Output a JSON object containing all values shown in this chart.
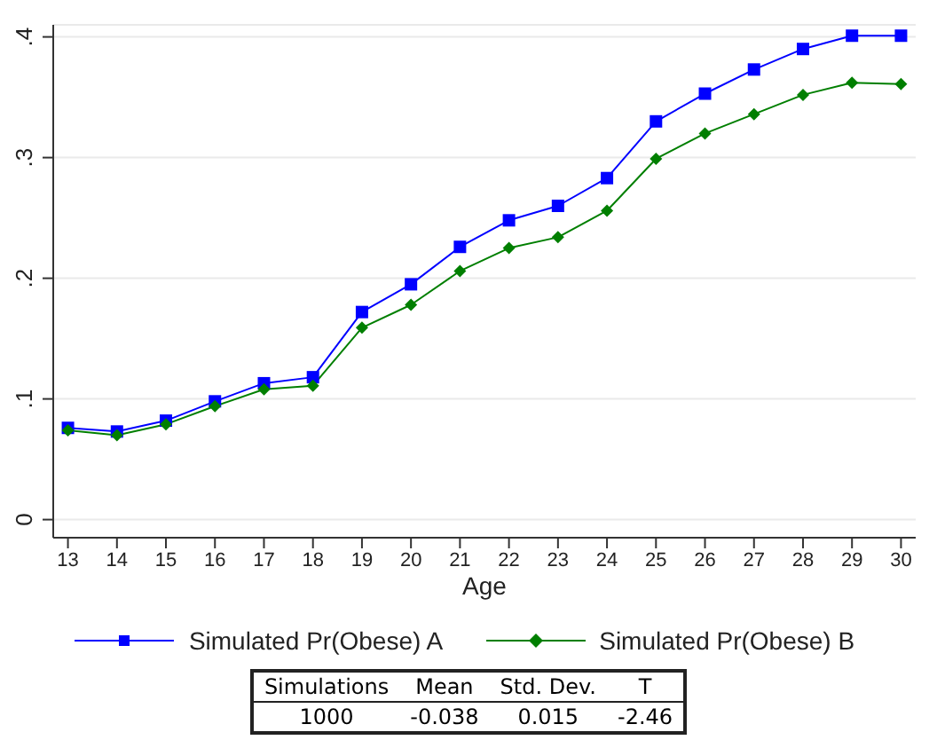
{
  "chart_data": {
    "type": "line",
    "xlabel": "Age",
    "x": [
      13,
      14,
      15,
      16,
      17,
      18,
      19,
      20,
      21,
      22,
      23,
      24,
      25,
      26,
      27,
      28,
      29,
      30
    ],
    "series": [
      {
        "name": "Simulated Pr(Obese) A",
        "color": "#0000ff",
        "marker": "square",
        "values": [
          0.076,
          0.073,
          0.082,
          0.098,
          0.113,
          0.118,
          0.172,
          0.195,
          0.226,
          0.248,
          0.26,
          0.283,
          0.33,
          0.353,
          0.373,
          0.39,
          0.401,
          0.401
        ]
      },
      {
        "name": "Simulated Pr(Obese) B",
        "color": "#007f00",
        "marker": "diamond",
        "values": [
          0.074,
          0.07,
          0.079,
          0.094,
          0.108,
          0.111,
          0.159,
          0.178,
          0.206,
          0.225,
          0.234,
          0.256,
          0.299,
          0.32,
          0.336,
          0.352,
          0.362,
          0.361
        ]
      }
    ],
    "xlim": [
      12.7,
      30.3
    ],
    "xticks": [
      13,
      14,
      15,
      16,
      17,
      18,
      19,
      20,
      21,
      22,
      23,
      24,
      25,
      26,
      27,
      28,
      29,
      30
    ],
    "ylim": [
      -0.015,
      0.41
    ],
    "yticks": [
      {
        "value": 0,
        "label": "0"
      },
      {
        "value": 0.1,
        "label": ".1"
      },
      {
        "value": 0.2,
        "label": ".2"
      },
      {
        "value": 0.3,
        "label": ".3"
      },
      {
        "value": 0.4,
        "label": ".4"
      }
    ],
    "grid": "y",
    "legend": "bottom",
    "line_style": "solid",
    "annotations": [
      "Simulations",
      "Mean",
      "Std. Dev.",
      "T",
      "1000",
      "-0.038",
      "0.015",
      "-2.46"
    ]
  }
}
